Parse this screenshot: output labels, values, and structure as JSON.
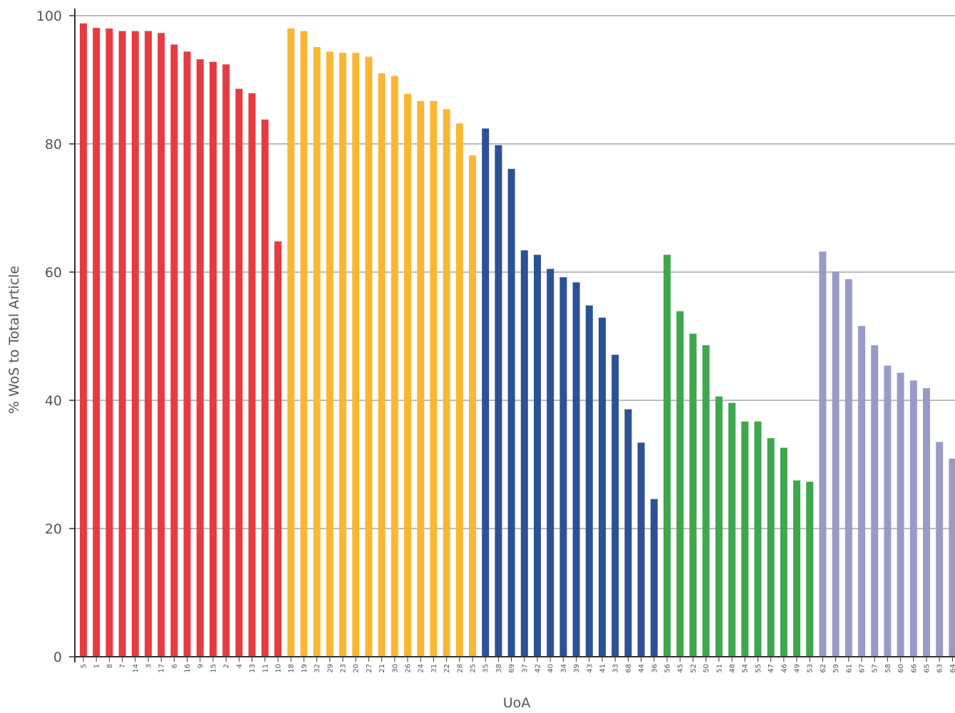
{
  "chart_data": {
    "type": "bar",
    "xlabel": "UoA",
    "ylabel": "% WoS to Total Article",
    "ylim": [
      0,
      100
    ],
    "yticks": [
      "0",
      "20",
      "40",
      "60",
      "80",
      "100"
    ],
    "grid": true,
    "categories": [
      "5",
      "1",
      "8",
      "7",
      "14",
      "3",
      "17",
      "6",
      "16",
      "9",
      "15",
      "2",
      "4",
      "13",
      "11",
      "10",
      "18",
      "19",
      "32",
      "29",
      "23",
      "20",
      "27",
      "21",
      "30",
      "26",
      "24",
      "31",
      "22",
      "28",
      "25",
      "35",
      "38",
      "69",
      "37",
      "42",
      "40",
      "34",
      "39",
      "43",
      "41",
      "33",
      "68",
      "44",
      "36",
      "56",
      "45",
      "52",
      "50",
      "51",
      "48",
      "54",
      "55",
      "47",
      "46",
      "49",
      "53",
      "62",
      "59",
      "61",
      "67",
      "57",
      "58",
      "60",
      "66",
      "65",
      "63",
      "64"
    ],
    "values": [
      98.8,
      98.1,
      98.0,
      97.6,
      97.6,
      97.6,
      97.3,
      95.5,
      94.4,
      93.2,
      92.8,
      92.4,
      88.6,
      87.9,
      83.8,
      64.8,
      98.0,
      97.6,
      95.1,
      94.4,
      94.2,
      94.2,
      93.6,
      91.0,
      90.6,
      87.8,
      86.7,
      86.7,
      85.4,
      83.2,
      78.2,
      82.4,
      79.8,
      76.1,
      63.4,
      62.7,
      60.5,
      59.2,
      58.4,
      54.8,
      52.9,
      47.1,
      38.6,
      33.4,
      24.6,
      62.7,
      53.9,
      50.4,
      48.6,
      40.6,
      39.6,
      36.7,
      36.7,
      34.1,
      32.6,
      27.5,
      27.3,
      63.2,
      60.1,
      58.9,
      51.6,
      48.6,
      45.4,
      44.3,
      43.1,
      41.9,
      33.5,
      30.9
    ],
    "groups": [
      {
        "count": 16,
        "color": "#e63c41"
      },
      {
        "count": 15,
        "color": "#fbb733"
      },
      {
        "count": 14,
        "color": "#2c5195"
      },
      {
        "count": 12,
        "color": "#3fa74d"
      },
      {
        "count": 11,
        "color": "#9a9ac7"
      }
    ],
    "axis_color": "#333333",
    "grid_color": "#7a7a7a"
  }
}
